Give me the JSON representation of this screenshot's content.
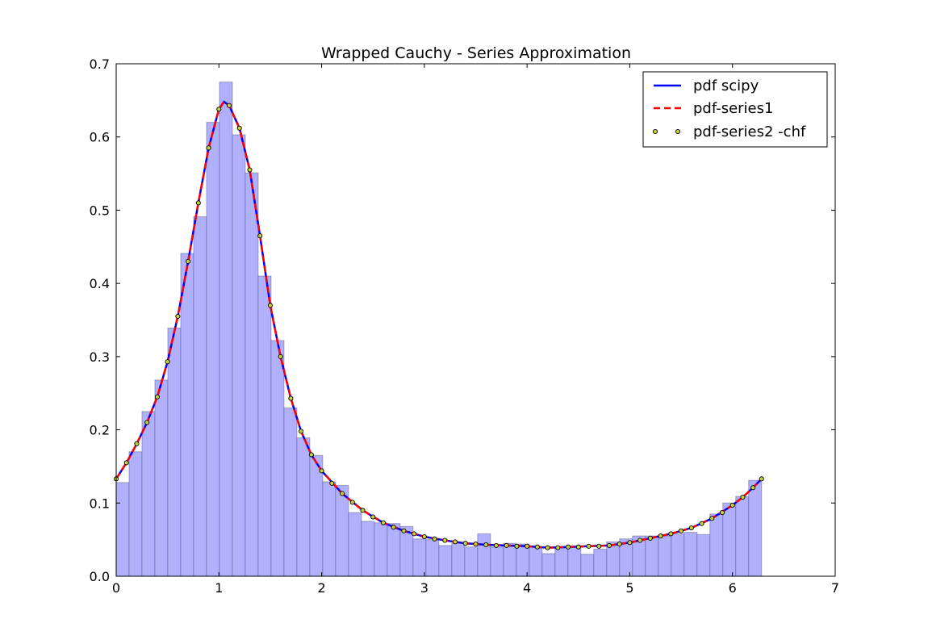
{
  "chart_data": {
    "type": "histogram-with-lines",
    "title": "Wrapped Cauchy - Series Approximation",
    "xlabel": "",
    "ylabel": "",
    "xlim": [
      0,
      7
    ],
    "ylim": [
      0,
      0.7
    ],
    "xticks": [
      "0",
      "1",
      "2",
      "3",
      "4",
      "5",
      "6",
      "7"
    ],
    "yticks": [
      "0.0",
      "0.1",
      "0.2",
      "0.3",
      "0.4",
      "0.5",
      "0.6",
      "0.7"
    ],
    "grid": false,
    "legend_position": "top-right",
    "histogram": {
      "bin_start": 0,
      "bin_end": 6.283,
      "bins": 50,
      "color": "#b0b0fc",
      "edge_color": "#555577",
      "values": [
        0.128,
        0.17,
        0.225,
        0.268,
        0.339,
        0.441,
        0.491,
        0.62,
        0.675,
        0.603,
        0.551,
        0.41,
        0.322,
        0.23,
        0.189,
        0.165,
        0.129,
        0.124,
        0.087,
        0.075,
        0.073,
        0.072,
        0.068,
        0.051,
        0.05,
        0.042,
        0.045,
        0.04,
        0.058,
        0.04,
        0.045,
        0.044,
        0.04,
        0.031,
        0.04,
        0.041,
        0.03,
        0.037,
        0.047,
        0.051,
        0.055,
        0.055,
        0.055,
        0.058,
        0.06,
        0.057,
        0.085,
        0.1,
        0.109,
        0.131
      ]
    },
    "series": [
      {
        "name": "pdf scipy",
        "style": "solid",
        "color": "#0000ff",
        "x": [
          0.0,
          0.1,
          0.2,
          0.3,
          0.4,
          0.5,
          0.6,
          0.7,
          0.8,
          0.9,
          1.0,
          1.05,
          1.1,
          1.2,
          1.3,
          1.4,
          1.5,
          1.6,
          1.7,
          1.8,
          1.9,
          2.0,
          2.2,
          2.4,
          2.6,
          2.8,
          3.0,
          3.2,
          3.4,
          3.6,
          3.8,
          4.0,
          4.2,
          4.4,
          4.6,
          4.8,
          5.0,
          5.2,
          5.4,
          5.6,
          5.8,
          6.0,
          6.1,
          6.2,
          6.283
        ],
        "y": [
          0.133,
          0.155,
          0.181,
          0.21,
          0.245,
          0.293,
          0.355,
          0.43,
          0.51,
          0.585,
          0.638,
          0.648,
          0.643,
          0.612,
          0.555,
          0.465,
          0.37,
          0.3,
          0.243,
          0.198,
          0.166,
          0.144,
          0.113,
          0.09,
          0.073,
          0.062,
          0.054,
          0.049,
          0.045,
          0.043,
          0.042,
          0.041,
          0.039,
          0.04,
          0.041,
          0.042,
          0.046,
          0.052,
          0.058,
          0.066,
          0.079,
          0.097,
          0.108,
          0.121,
          0.133
        ]
      },
      {
        "name": "pdf-series1",
        "style": "dashed",
        "color": "#ff0000",
        "x": [
          0.0,
          0.1,
          0.2,
          0.3,
          0.4,
          0.5,
          0.6,
          0.7,
          0.8,
          0.9,
          1.0,
          1.05,
          1.1,
          1.2,
          1.3,
          1.4,
          1.5,
          1.6,
          1.7,
          1.8,
          1.9,
          2.0,
          2.2,
          2.4,
          2.6,
          2.8,
          3.0,
          3.2,
          3.4,
          3.6,
          3.8,
          4.0,
          4.2,
          4.4,
          4.6,
          4.8,
          5.0,
          5.2,
          5.4,
          5.6,
          5.8,
          6.0,
          6.1,
          6.2,
          6.283
        ],
        "y": [
          0.133,
          0.155,
          0.181,
          0.21,
          0.245,
          0.293,
          0.355,
          0.43,
          0.51,
          0.585,
          0.638,
          0.648,
          0.643,
          0.612,
          0.555,
          0.465,
          0.37,
          0.3,
          0.243,
          0.198,
          0.166,
          0.144,
          0.113,
          0.09,
          0.073,
          0.062,
          0.054,
          0.049,
          0.045,
          0.043,
          0.042,
          0.041,
          0.039,
          0.04,
          0.041,
          0.042,
          0.046,
          0.052,
          0.058,
          0.066,
          0.079,
          0.097,
          0.108,
          0.121,
          0.133
        ]
      },
      {
        "name": "pdf-series2 -chf",
        "style": "dots",
        "color": "#c8d23c",
        "x": [
          0.0,
          0.1,
          0.2,
          0.3,
          0.4,
          0.5,
          0.6,
          0.7,
          0.8,
          0.9,
          1.0,
          1.1,
          1.2,
          1.3,
          1.4,
          1.5,
          1.6,
          1.7,
          1.8,
          1.9,
          2.0,
          2.1,
          2.2,
          2.3,
          2.4,
          2.5,
          2.6,
          2.7,
          2.8,
          2.9,
          3.0,
          3.1,
          3.2,
          3.3,
          3.4,
          3.5,
          3.6,
          3.7,
          3.8,
          3.9,
          4.0,
          4.1,
          4.2,
          4.3,
          4.4,
          4.5,
          4.6,
          4.7,
          4.8,
          4.9,
          5.0,
          5.1,
          5.2,
          5.3,
          5.4,
          5.5,
          5.6,
          5.7,
          5.8,
          5.9,
          6.0,
          6.1,
          6.2,
          6.283
        ],
        "y": [
          0.133,
          0.155,
          0.181,
          0.21,
          0.245,
          0.293,
          0.355,
          0.43,
          0.51,
          0.585,
          0.638,
          0.643,
          0.612,
          0.555,
          0.465,
          0.37,
          0.3,
          0.243,
          0.198,
          0.166,
          0.144,
          0.127,
          0.113,
          0.101,
          0.09,
          0.081,
          0.073,
          0.067,
          0.062,
          0.058,
          0.054,
          0.051,
          0.049,
          0.047,
          0.045,
          0.044,
          0.043,
          0.042,
          0.042,
          0.041,
          0.041,
          0.04,
          0.039,
          0.039,
          0.04,
          0.04,
          0.041,
          0.041,
          0.042,
          0.044,
          0.046,
          0.049,
          0.052,
          0.055,
          0.058,
          0.062,
          0.066,
          0.072,
          0.079,
          0.087,
          0.097,
          0.108,
          0.121,
          0.133
        ]
      }
    ]
  }
}
